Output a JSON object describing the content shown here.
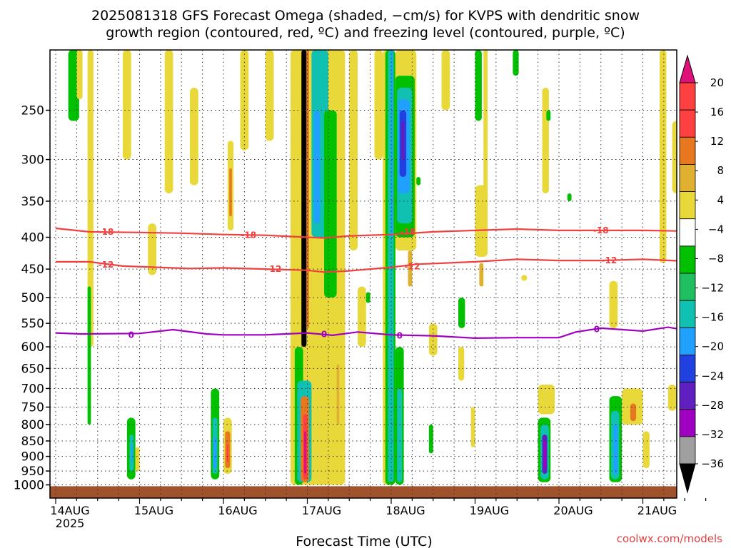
{
  "chart_data": {
    "type": "heatmap",
    "title_lines": [
      "2025081318 GFS Forecast Omega (shaded, −cm/s) for KVPS with dendritic snow",
      "growth region (contoured, red, ºC) and freezing level (contoured, purple, ºC)"
    ],
    "xlabel": "Forecast Time (UTC)",
    "ylabel": "",
    "credit": "coolwx.com/models",
    "x_range": [
      "2025-08-13T18",
      "2025-08-21T18"
    ],
    "x_ticks": [
      {
        "label": "14AUG",
        "sub": "2025",
        "day": 0
      },
      {
        "label": "15AUG",
        "day": 1
      },
      {
        "label": "16AUG",
        "day": 2
      },
      {
        "label": "17AUG",
        "day": 3
      },
      {
        "label": "18AUG",
        "day": 4
      },
      {
        "label": "19AUG",
        "day": 5
      },
      {
        "label": "20AUG",
        "day": 6
      },
      {
        "label": "21AUG",
        "day": 7
      }
    ],
    "y_axis": {
      "scale": "log-pressure",
      "units": "hPa",
      "ylim": [
        1050,
        200
      ],
      "reversed": true
    },
    "y_ticks": [
      250,
      300,
      350,
      400,
      450,
      500,
      550,
      600,
      650,
      700,
      750,
      800,
      850,
      900,
      950,
      1000
    ],
    "colorbar": {
      "labels": [
        "20",
        "16",
        "12",
        "8",
        "4",
        "−4",
        "−8",
        "−12",
        "−16",
        "−20",
        "−24",
        "−28",
        "−32",
        "−36"
      ],
      "colors": [
        "#ff4040",
        "#ff4040",
        "#e87820",
        "#e0b030",
        "#e8d83a",
        "#ffffff",
        "#00c000",
        "#20c060",
        "#10c0b0",
        "#20a0ff",
        "#2040e0",
        "#6020c0",
        "#a000c0",
        "#a0a0a0",
        "#000000"
      ],
      "top_color": "#e0107a",
      "bottom_color": "#000000"
    },
    "contours": [
      {
        "label": "-18",
        "color": "#f04040",
        "points": [
          [
            0,
            387
          ],
          [
            0.4,
            392
          ],
          [
            1,
            393
          ],
          [
            1.5,
            394
          ],
          [
            2,
            396
          ],
          [
            2.5,
            397
          ],
          [
            3,
            400
          ],
          [
            3.2,
            401
          ],
          [
            3.5,
            398
          ],
          [
            4,
            396
          ],
          [
            4.5,
            392
          ],
          [
            5,
            390
          ],
          [
            5.5,
            388
          ],
          [
            6,
            390
          ],
          [
            6.5,
            390
          ],
          [
            7,
            390
          ],
          [
            7.5,
            391
          ]
        ]
      },
      {
        "label": "-12",
        "color": "#f04040",
        "points": [
          [
            0,
            438
          ],
          [
            0.4,
            438
          ],
          [
            0.8,
            445
          ],
          [
            1.2,
            447
          ],
          [
            1.6,
            449
          ],
          [
            2,
            448
          ],
          [
            2.5,
            450
          ],
          [
            3,
            452
          ],
          [
            3.2,
            455
          ],
          [
            3.5,
            453
          ],
          [
            4,
            447
          ],
          [
            4.3,
            442
          ],
          [
            5,
            438
          ],
          [
            5.5,
            434
          ],
          [
            6,
            436
          ],
          [
            6.5,
            436
          ],
          [
            7,
            434
          ],
          [
            7.5,
            437
          ]
        ]
      },
      {
        "label": "0",
        "color": "#a000c0",
        "points": [
          [
            0,
            570
          ],
          [
            0.3,
            572
          ],
          [
            1,
            571
          ],
          [
            1.4,
            563
          ],
          [
            1.8,
            572
          ],
          [
            2,
            574
          ],
          [
            2.5,
            574
          ],
          [
            3,
            570
          ],
          [
            3.3,
            575
          ],
          [
            3.6,
            568
          ],
          [
            4,
            574
          ],
          [
            4.5,
            576
          ],
          [
            5,
            581
          ],
          [
            5.5,
            580
          ],
          [
            6,
            580
          ],
          [
            6.2,
            568
          ],
          [
            6.5,
            560
          ],
          [
            7,
            566
          ],
          [
            7.3,
            558
          ],
          [
            7.5,
            564
          ]
        ]
      }
    ],
    "contour_labels": [
      {
        "text": "-18",
        "day": 0.6,
        "p": 392,
        "color": "#f04040"
      },
      {
        "text": "-18",
        "day": 2.3,
        "p": 397,
        "color": "#f04040"
      },
      {
        "text": "-18",
        "day": 4.2,
        "p": 392,
        "color": "#f04040"
      },
      {
        "text": "-18",
        "day": 6.5,
        "p": 390,
        "color": "#f04040"
      },
      {
        "text": "-12",
        "day": 0.6,
        "p": 443,
        "color": "#f04040"
      },
      {
        "text": "-12",
        "day": 2.6,
        "p": 450,
        "color": "#f04040"
      },
      {
        "text": "-12",
        "day": 4.25,
        "p": 446,
        "color": "#f04040"
      },
      {
        "text": "-12",
        "day": 6.6,
        "p": 436,
        "color": "#f04040"
      },
      {
        "text": "0",
        "day": 0.9,
        "p": 574,
        "color": "#a000c0"
      },
      {
        "text": "0",
        "day": 3.2,
        "p": 573,
        "color": "#a000c0"
      },
      {
        "text": "0",
        "day": 4.1,
        "p": 576,
        "color": "#a000c0"
      },
      {
        "text": "0",
        "day": 6.45,
        "p": 562,
        "color": "#a000c0"
      }
    ],
    "shaded_cells": [
      {
        "d0": 0.15,
        "d1": 0.28,
        "p0": 200,
        "p1": 260,
        "color": "#00c000"
      },
      {
        "d0": 0.25,
        "d1": 0.32,
        "p0": 200,
        "p1": 240,
        "color": "#e8d83a"
      },
      {
        "d0": 0.38,
        "d1": 0.45,
        "p0": 200,
        "p1": 600,
        "color": "#e8d83a"
      },
      {
        "d0": 0.38,
        "d1": 0.42,
        "p0": 480,
        "p1": 800,
        "color": "#00c000"
      },
      {
        "d0": 0.85,
        "d1": 0.95,
        "p0": 780,
        "p1": 980,
        "color": "#00c000"
      },
      {
        "d0": 0.88,
        "d1": 0.93,
        "p0": 830,
        "p1": 950,
        "color": "#10c0b0"
      },
      {
        "d0": 0.9,
        "d1": 0.92,
        "p0": 860,
        "p1": 920,
        "color": "#20a0ff"
      },
      {
        "d0": 0.95,
        "d1": 1.0,
        "p0": 870,
        "p1": 950,
        "color": "#e8d83a"
      },
      {
        "d0": 0.8,
        "d1": 0.9,
        "p0": 200,
        "p1": 300,
        "color": "#e8d83a"
      },
      {
        "d0": 1.3,
        "d1": 1.4,
        "p0": 200,
        "p1": 340,
        "color": "#e8d83a"
      },
      {
        "d0": 1.1,
        "d1": 1.2,
        "p0": 380,
        "p1": 460,
        "color": "#e8d83a"
      },
      {
        "d0": 1.6,
        "d1": 1.7,
        "p0": 230,
        "p1": 330,
        "color": "#e8d83a"
      },
      {
        "d0": 1.85,
        "d1": 1.95,
        "p0": 700,
        "p1": 980,
        "color": "#00c000"
      },
      {
        "d0": 1.87,
        "d1": 1.93,
        "p0": 780,
        "p1": 960,
        "color": "#10c0b0"
      },
      {
        "d0": 1.88,
        "d1": 1.92,
        "p0": 840,
        "p1": 940,
        "color": "#20a0ff"
      },
      {
        "d0": 2.0,
        "d1": 2.1,
        "p0": 780,
        "p1": 960,
        "color": "#e8d83a"
      },
      {
        "d0": 2.02,
        "d1": 2.08,
        "p0": 820,
        "p1": 940,
        "color": "#e87820"
      },
      {
        "d0": 2.04,
        "d1": 2.06,
        "p0": 860,
        "p1": 920,
        "color": "#ff4040"
      },
      {
        "d0": 2.05,
        "d1": 2.12,
        "p0": 280,
        "p1": 390,
        "color": "#e8d83a"
      },
      {
        "d0": 2.07,
        "d1": 2.1,
        "p0": 310,
        "p1": 370,
        "color": "#e87820"
      },
      {
        "d0": 2.2,
        "d1": 2.3,
        "p0": 200,
        "p1": 290,
        "color": "#e8d83a"
      },
      {
        "d0": 2.5,
        "d1": 2.6,
        "p0": 200,
        "p1": 280,
        "color": "#e8d83a"
      },
      {
        "d0": 2.8,
        "d1": 3.45,
        "p0": 200,
        "p1": 1000,
        "color": "#e8d83a"
      },
      {
        "d0": 2.85,
        "d1": 2.95,
        "p0": 600,
        "p1": 1000,
        "color": "#00c000"
      },
      {
        "d0": 2.88,
        "d1": 3.05,
        "p0": 680,
        "p1": 990,
        "color": "#10c0b0"
      },
      {
        "d0": 2.92,
        "d1": 3.02,
        "p0": 720,
        "p1": 990,
        "color": "#e87820"
      },
      {
        "d0": 2.95,
        "d1": 3.0,
        "p0": 770,
        "p1": 980,
        "color": "#ff4040"
      },
      {
        "d0": 2.96,
        "d1": 2.99,
        "p0": 820,
        "p1": 960,
        "color": "#e0107a"
      },
      {
        "d0": 2.93,
        "d1": 2.99,
        "p0": 200,
        "p1": 600,
        "color": "#000000"
      },
      {
        "d0": 2.99,
        "d1": 3.02,
        "p0": 200,
        "p1": 560,
        "color": "#e87820"
      },
      {
        "d0": 3.05,
        "d1": 3.25,
        "p0": 200,
        "p1": 400,
        "color": "#10c0b0"
      },
      {
        "d0": 3.08,
        "d1": 3.15,
        "p0": 250,
        "p1": 380,
        "color": "#20a0ff"
      },
      {
        "d0": 3.2,
        "d1": 3.35,
        "p0": 250,
        "p1": 500,
        "color": "#00c000"
      },
      {
        "d0": 3.3,
        "d1": 3.4,
        "p0": 600,
        "p1": 980,
        "color": "#e8d83a"
      },
      {
        "d0": 3.35,
        "d1": 3.38,
        "p0": 640,
        "p1": 800,
        "color": "#e0b030"
      },
      {
        "d0": 3.5,
        "d1": 3.6,
        "p0": 200,
        "p1": 420,
        "color": "#e8d83a"
      },
      {
        "d0": 3.6,
        "d1": 3.7,
        "p0": 480,
        "p1": 600,
        "color": "#e8d83a"
      },
      {
        "d0": 3.7,
        "d1": 3.75,
        "p0": 490,
        "p1": 510,
        "color": "#00c000"
      },
      {
        "d0": 3.8,
        "d1": 3.9,
        "p0": 200,
        "p1": 300,
        "color": "#e8d83a"
      },
      {
        "d0": 3.9,
        "d1": 4.05,
        "p0": 200,
        "p1": 1000,
        "color": "#e8d83a"
      },
      {
        "d0": 3.93,
        "d1": 4.05,
        "p0": 200,
        "p1": 1000,
        "color": "#00c000"
      },
      {
        "d0": 3.96,
        "d1": 4.03,
        "p0": 200,
        "p1": 990,
        "color": "#10c0b0"
      },
      {
        "d0": 4.0,
        "d1": 4.02,
        "p0": 200,
        "p1": 400,
        "color": "#20a0ff"
      },
      {
        "d0": 4.05,
        "d1": 4.3,
        "p0": 200,
        "p1": 420,
        "color": "#e8d83a"
      },
      {
        "d0": 4.05,
        "d1": 4.28,
        "p0": 220,
        "p1": 400,
        "color": "#00c000"
      },
      {
        "d0": 4.07,
        "d1": 4.25,
        "p0": 230,
        "p1": 380,
        "color": "#10c0b0"
      },
      {
        "d0": 4.08,
        "d1": 4.22,
        "p0": 240,
        "p1": 340,
        "color": "#20a0ff"
      },
      {
        "d0": 4.1,
        "d1": 4.18,
        "p0": 250,
        "p1": 320,
        "color": "#2040e0"
      },
      {
        "d0": 4.12,
        "d1": 4.16,
        "p0": 260,
        "p1": 300,
        "color": "#6020c0"
      },
      {
        "d0": 4.05,
        "d1": 4.15,
        "p0": 600,
        "p1": 1000,
        "color": "#00c000"
      },
      {
        "d0": 4.07,
        "d1": 4.13,
        "p0": 700,
        "p1": 990,
        "color": "#10c0b0"
      },
      {
        "d0": 4.2,
        "d1": 4.25,
        "p0": 420,
        "p1": 480,
        "color": "#e0b030"
      },
      {
        "d0": 4.3,
        "d1": 4.35,
        "p0": 320,
        "p1": 330,
        "color": "#00c000"
      },
      {
        "d0": 4.45,
        "d1": 4.55,
        "p0": 550,
        "p1": 620,
        "color": "#e8d83a"
      },
      {
        "d0": 4.45,
        "d1": 4.5,
        "p0": 800,
        "p1": 890,
        "color": "#00c000"
      },
      {
        "d0": 4.6,
        "d1": 4.7,
        "p0": 200,
        "p1": 250,
        "color": "#e8d83a"
      },
      {
        "d0": 4.8,
        "d1": 4.88,
        "p0": 500,
        "p1": 560,
        "color": "#00c000"
      },
      {
        "d0": 4.8,
        "d1": 4.87,
        "p0": 600,
        "p1": 680,
        "color": "#e8d83a"
      },
      {
        "d0": 4.95,
        "d1": 5.0,
        "p0": 750,
        "p1": 870,
        "color": "#e8d83a"
      },
      {
        "d0": 5.0,
        "d1": 5.08,
        "p0": 200,
        "p1": 260,
        "color": "#00c000"
      },
      {
        "d0": 5.0,
        "d1": 5.15,
        "p0": 330,
        "p1": 430,
        "color": "#e8d83a"
      },
      {
        "d0": 5.05,
        "d1": 5.1,
        "p0": 440,
        "p1": 480,
        "color": "#e0b030"
      },
      {
        "d0": 5.1,
        "d1": 5.15,
        "p0": 200,
        "p1": 360,
        "color": "#e8d83a"
      },
      {
        "d0": 5.45,
        "d1": 5.52,
        "p0": 200,
        "p1": 220,
        "color": "#00c000"
      },
      {
        "d0": 5.8,
        "d1": 5.88,
        "p0": 230,
        "p1": 340,
        "color": "#e8d83a"
      },
      {
        "d0": 5.85,
        "d1": 5.9,
        "p0": 250,
        "p1": 260,
        "color": "#00c000"
      },
      {
        "d0": 5.55,
        "d1": 5.62,
        "p0": 460,
        "p1": 470,
        "color": "#e8d83a"
      },
      {
        "d0": 5.75,
        "d1": 5.9,
        "p0": 780,
        "p1": 990,
        "color": "#00c000"
      },
      {
        "d0": 5.78,
        "d1": 5.88,
        "p0": 800,
        "p1": 980,
        "color": "#10c0b0"
      },
      {
        "d0": 5.8,
        "d1": 5.86,
        "p0": 830,
        "p1": 960,
        "color": "#6020c0"
      },
      {
        "d0": 5.82,
        "d1": 5.85,
        "p0": 850,
        "p1": 940,
        "color": "#a000c0"
      },
      {
        "d0": 5.75,
        "d1": 5.95,
        "p0": 690,
        "p1": 770,
        "color": "#e8d83a"
      },
      {
        "d0": 6.1,
        "d1": 6.15,
        "p0": 340,
        "p1": 350,
        "color": "#00c000"
      },
      {
        "d0": 6.6,
        "d1": 6.7,
        "p0": 470,
        "p1": 560,
        "color": "#e8d83a"
      },
      {
        "d0": 6.6,
        "d1": 6.75,
        "p0": 720,
        "p1": 990,
        "color": "#00c000"
      },
      {
        "d0": 6.62,
        "d1": 6.72,
        "p0": 760,
        "p1": 980,
        "color": "#10c0b0"
      },
      {
        "d0": 6.65,
        "d1": 6.7,
        "p0": 800,
        "p1": 960,
        "color": "#20a0ff"
      },
      {
        "d0": 6.75,
        "d1": 7.0,
        "p0": 700,
        "p1": 800,
        "color": "#e8d83a"
      },
      {
        "d0": 6.85,
        "d1": 6.92,
        "p0": 740,
        "p1": 790,
        "color": "#e87820"
      },
      {
        "d0": 7.2,
        "d1": 7.28,
        "p0": 200,
        "p1": 440,
        "color": "#e8d83a"
      },
      {
        "d0": 7.35,
        "d1": 7.45,
        "p0": 260,
        "p1": 340,
        "color": "#e8d83a"
      },
      {
        "d0": 7.4,
        "d1": 7.45,
        "p0": 200,
        "p1": 220,
        "color": "#00c000"
      },
      {
        "d0": 7.0,
        "d1": 7.08,
        "p0": 820,
        "p1": 940,
        "color": "#e8d83a"
      },
      {
        "d0": 7.4,
        "d1": 7.45,
        "p0": 680,
        "p1": 740,
        "color": "#00c000"
      },
      {
        "d0": 7.3,
        "d1": 7.4,
        "p0": 690,
        "p1": 760,
        "color": "#e8d83a"
      }
    ],
    "ground_color": "#a0522d",
    "grid": true
  }
}
